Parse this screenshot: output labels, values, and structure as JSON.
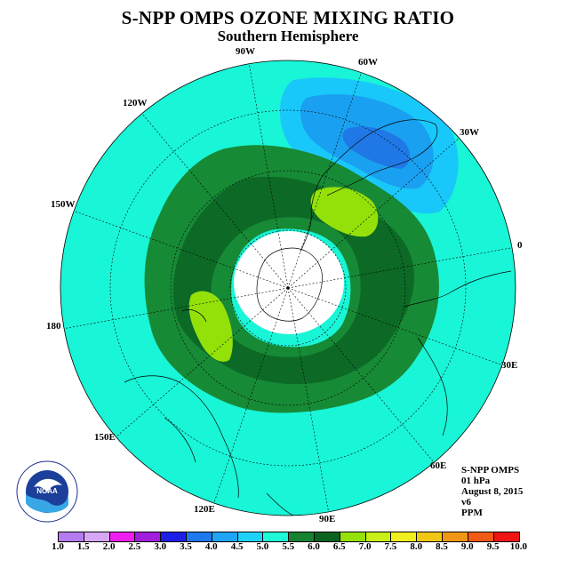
{
  "header": {
    "title": "S-NPP OMPS OZONE MIXING RATIO",
    "subtitle": "Southern Hemisphere"
  },
  "map": {
    "projection": "south-polar-stereographic",
    "longitude_labels": [
      "90W",
      "60W",
      "30W",
      "0",
      "30E",
      "60E",
      "90E",
      "120E",
      "150E",
      "180",
      "150W",
      "120W"
    ],
    "ocean_base_level": "5.0-5.5",
    "colors": {
      "level_4_5_5_0": "#19f5d7",
      "level_5_0_5_5": "#178a36",
      "level_5_5_6_0": "#0c6a26",
      "level_6_0_6_5": "#94e10a",
      "level_4_0_4_5": "#19c8fa",
      "level_3_5_4_0": "#1aa0f0",
      "level_3_0_3_5": "#1f78e6",
      "no_data": "#ffffff"
    }
  },
  "info": {
    "product": "S-NPP OMPS",
    "level": "01 hPa",
    "date": "August 8, 2015",
    "version": "v6",
    "units": "PPM"
  },
  "logo": {
    "text": "NOAA",
    "ring_text": "NATIONAL OCEANIC AND ATMOSPHERIC ADMINISTRATION · U.S. DEPARTMENT OF COMMERCE"
  },
  "colorbar": {
    "ticks": [
      "1.0",
      "1.5",
      "2.0",
      "2.5",
      "3.0",
      "3.5",
      "4.0",
      "4.5",
      "5.0",
      "5.5",
      "6.0",
      "6.5",
      "7.0",
      "7.5",
      "8.0",
      "8.5",
      "9.0",
      "9.5",
      "10.0"
    ],
    "colors": [
      "#b57cf0",
      "#d7a7f5",
      "#f01ef0",
      "#a01edc",
      "#1e1ee6",
      "#1e78ee",
      "#1ea5f5",
      "#1ed2fa",
      "#1efad7",
      "#168232",
      "#0a6420",
      "#96e108",
      "#c8f018",
      "#f0f01e",
      "#f0c814",
      "#f09614",
      "#f05a14",
      "#f01414",
      "#7a4a36"
    ]
  }
}
